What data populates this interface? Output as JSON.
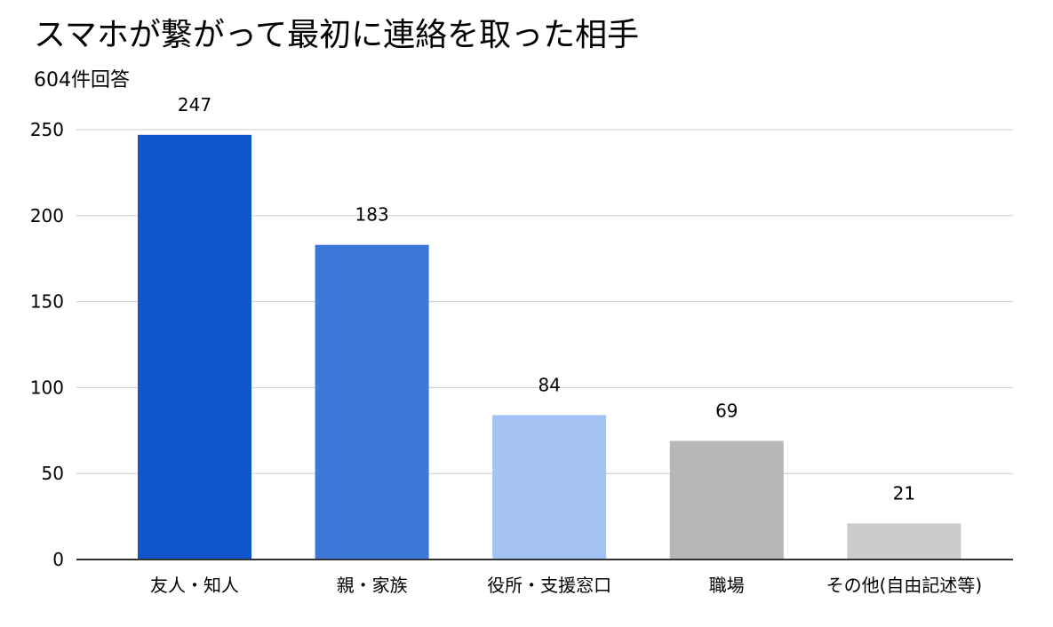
{
  "chart_data": {
    "type": "bar",
    "title": "スマホが繋がって最初に連絡を取った相手",
    "subtitle": "604件回答",
    "xlabel": "",
    "ylabel": "",
    "categories": [
      "友人・知人",
      "親・家族",
      "役所・支援窓口",
      "職場",
      "その他(自由記述等)"
    ],
    "values": [
      247,
      183,
      84,
      69,
      21
    ],
    "data_labels": [
      "247",
      "183",
      "84",
      "69",
      "21"
    ],
    "bar_colors": [
      "#1155cc",
      "#3c78d8",
      "#a4c2f4",
      "#b7b7b7",
      "#cccccc"
    ],
    "ylim": [
      0,
      250
    ],
    "yticks": [
      0,
      50,
      100,
      150,
      200,
      250
    ],
    "grid": true,
    "legend": "none"
  }
}
